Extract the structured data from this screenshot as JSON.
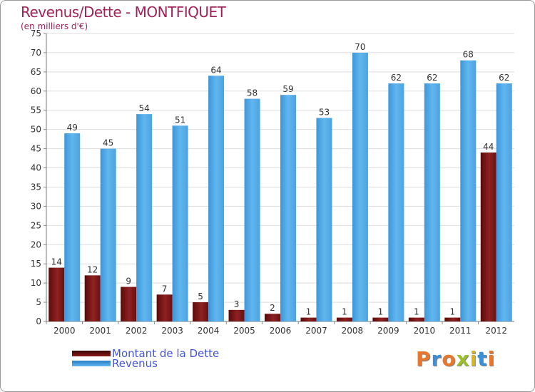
{
  "title": "Revenus/Dette - MONTFIQUET",
  "subtitle": "(en milliers d'€)",
  "chart_data": {
    "type": "bar",
    "categories": [
      "2000",
      "2001",
      "2002",
      "2003",
      "2004",
      "2005",
      "2006",
      "2007",
      "2008",
      "2009",
      "2010",
      "2011",
      "2012"
    ],
    "series": [
      {
        "name": "Montant de la Dette",
        "values": [
          14,
          12,
          9,
          7,
          5,
          3,
          2,
          1,
          1,
          1,
          1,
          1,
          44
        ],
        "color": "#7a1414"
      },
      {
        "name": "Revenus",
        "values": [
          49,
          45,
          54,
          51,
          64,
          58,
          59,
          53,
          70,
          62,
          62,
          68,
          62
        ],
        "color": "#4aa3e0"
      }
    ],
    "ylim": [
      0,
      75
    ],
    "yticks": [
      0,
      5,
      10,
      15,
      20,
      25,
      30,
      35,
      40,
      45,
      50,
      55,
      60,
      65,
      70,
      75
    ],
    "grid": true,
    "legend": "bottom-left"
  },
  "legend": {
    "debt_label": "Montant de la Dette",
    "revenue_label": "Revenus"
  },
  "logo": {
    "letters": [
      "P",
      "r",
      "o",
      "x",
      "i",
      "t",
      "i"
    ],
    "colors": [
      "#e8772e",
      "#3b8fd4",
      "#e8772e",
      "#9bbf2a",
      "#d9b81e",
      "#3b8fd4",
      "#e8772e"
    ]
  }
}
